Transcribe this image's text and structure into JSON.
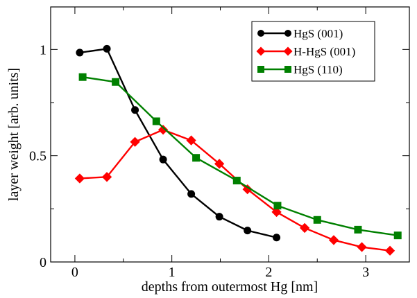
{
  "chart_data": {
    "type": "line",
    "title": "",
    "xlabel": "depths from outermost Hg [nm]",
    "ylabel": "layer weight [arb. units]",
    "xlim": [
      -0.25,
      3.45
    ],
    "ylim": [
      0,
      1.2
    ],
    "xticks": [
      0,
      1,
      2,
      3
    ],
    "xtick_labels": [
      "0",
      "1",
      "2",
      "3"
    ],
    "yticks": [
      0,
      0.5,
      1
    ],
    "ytick_labels": [
      "0",
      "0.5",
      "1"
    ],
    "grid": false,
    "legend_position": "top-right",
    "series": [
      {
        "name": "HgS (001)",
        "color": "#000000",
        "marker": "circle",
        "x": [
          0.05,
          0.33,
          0.62,
          0.91,
          1.2,
          1.49,
          1.78,
          2.08
        ],
        "y": [
          0.985,
          1.003,
          0.715,
          0.482,
          0.32,
          0.213,
          0.148,
          0.115
        ]
      },
      {
        "name": "H-HgS (001)",
        "color": "#ff0000",
        "marker": "diamond",
        "x": [
          0.05,
          0.33,
          0.62,
          0.91,
          1.2,
          1.49,
          1.78,
          2.08,
          2.37,
          2.67,
          2.96,
          3.25
        ],
        "y": [
          0.393,
          0.4,
          0.565,
          0.622,
          0.572,
          0.462,
          0.342,
          0.235,
          0.16,
          0.103,
          0.07,
          0.053
        ]
      },
      {
        "name": "HgS (110)",
        "color": "#008000",
        "marker": "square",
        "x": [
          0.08,
          0.42,
          0.84,
          1.25,
          1.67,
          2.09,
          2.5,
          2.92,
          3.33
        ],
        "y": [
          0.87,
          0.847,
          0.662,
          0.49,
          0.383,
          0.265,
          0.198,
          0.152,
          0.125
        ]
      }
    ]
  }
}
